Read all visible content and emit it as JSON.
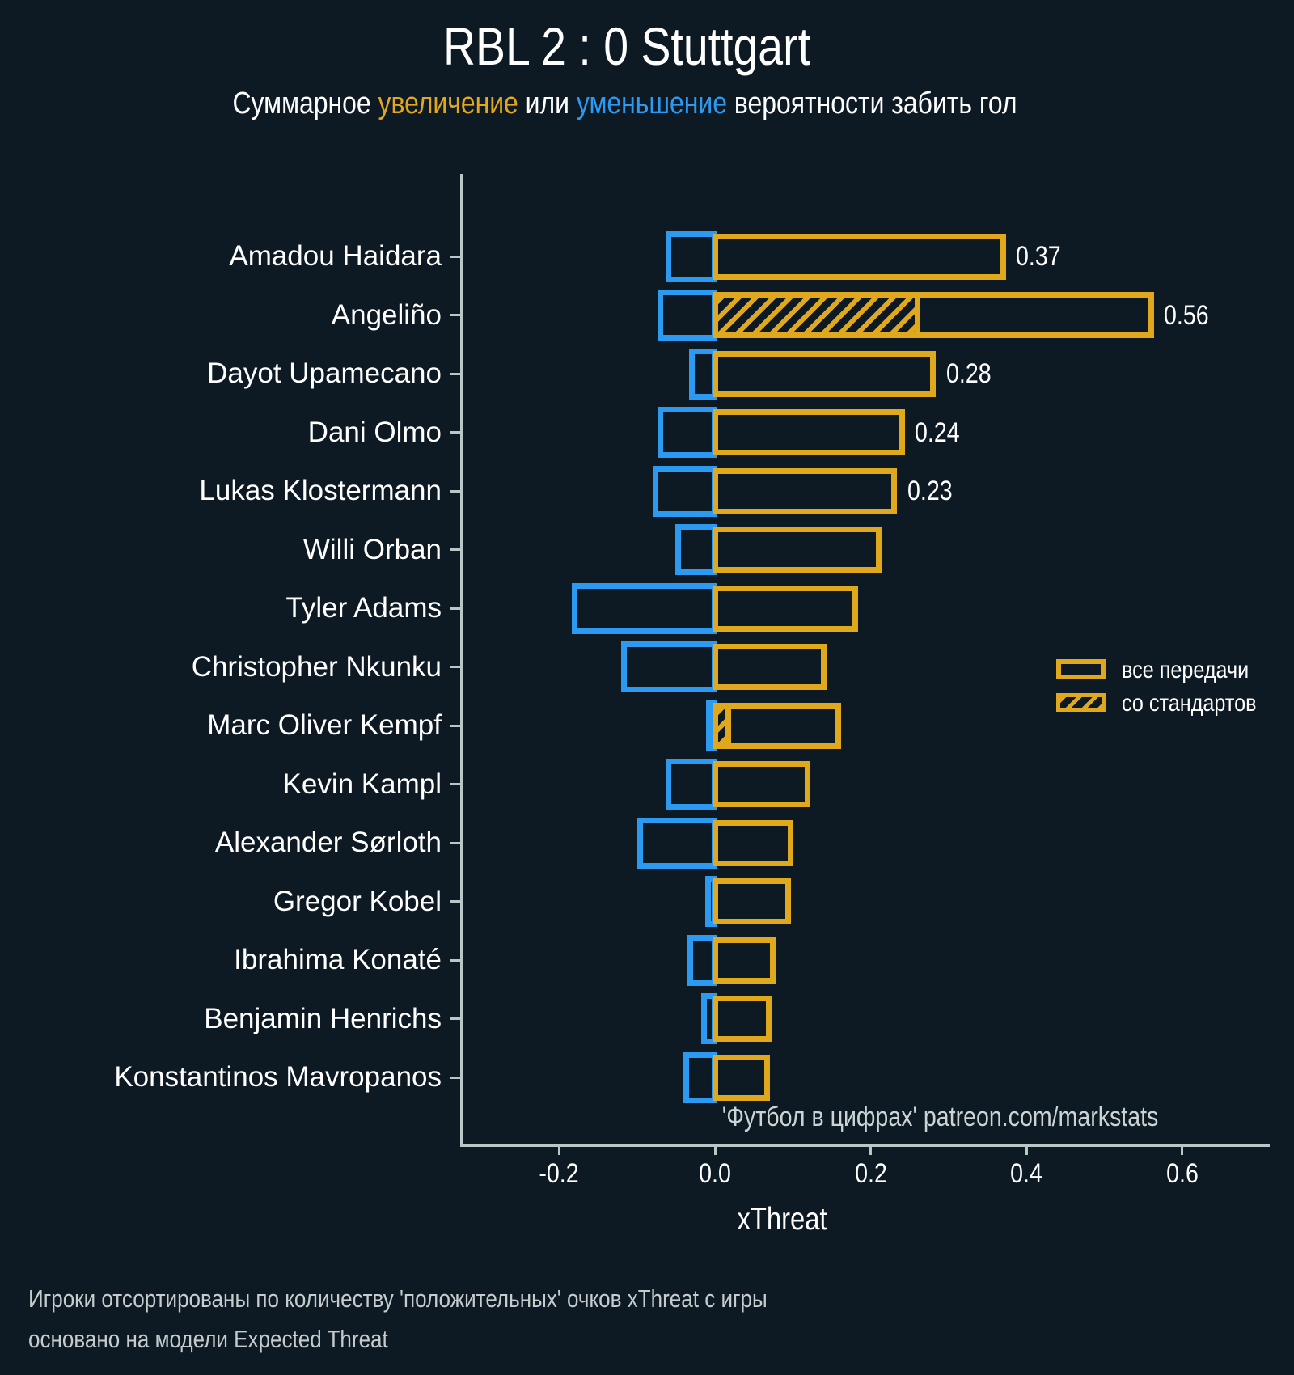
{
  "title": "RBL 2 : 0 Stuttgart",
  "subtitle": {
    "parts": [
      {
        "text": "Суммарное ",
        "color": "white"
      },
      {
        "text": "увеличение",
        "color": "positive"
      },
      {
        "text": " или ",
        "color": "white"
      },
      {
        "text": "уменьшение",
        "color": "negative"
      },
      {
        "text": " вероятности забить гол",
        "color": "white"
      }
    ]
  },
  "colors": {
    "background": "#0d1923",
    "positive": "#e0a81d",
    "negative": "#2b9af0",
    "axis": "#b9c7c6",
    "text": "#ffffff",
    "footer_text": "#c6ccce",
    "watermark_text": "#ccd3d4"
  },
  "legend": {
    "items": [
      {
        "label": "все передачи",
        "style": "outline"
      },
      {
        "label": "со стандартов",
        "style": "hatched"
      }
    ]
  },
  "watermark": "'Футбол в цифрах' patreon.com/markstats",
  "footer": [
    "Игроки отсортированы по количеству 'положительных' очков xThreat с игры",
    "основано на модели Expected Threat"
  ],
  "chart_data": {
    "type": "bar",
    "orientation": "horizontal",
    "title": "RBL 2 : 0 Stuttgart",
    "xlabel": "xThreat",
    "ylabel": "",
    "x_ticks": [
      "-0.2",
      "0.0",
      "0.2",
      "0.4",
      "0.6"
    ],
    "x_tick_values": [
      -0.2,
      0.0,
      0.2,
      0.4,
      0.6
    ],
    "xlim": [
      -0.327,
      0.712
    ],
    "grid": false,
    "legend_position": "center-right",
    "series_note": "positive = increase in goal probability (all passes), standards = portion from set pieces, negative = decrease",
    "players": [
      {
        "name": "Amadou Haidara",
        "positive": 0.37,
        "standards": 0,
        "negative": -0.06,
        "label": "0.37"
      },
      {
        "name": "Angeliño",
        "positive": 0.56,
        "standards": 0.26,
        "negative": -0.07,
        "label": "0.56"
      },
      {
        "name": "Dayot Upamecano",
        "positive": 0.28,
        "standards": 0,
        "negative": -0.03,
        "label": "0.28"
      },
      {
        "name": "Dani Olmo",
        "positive": 0.24,
        "standards": 0,
        "negative": -0.07,
        "label": "0.24"
      },
      {
        "name": "Lukas Klostermann",
        "positive": 0.23,
        "standards": 0,
        "negative": -0.076,
        "label": "0.23"
      },
      {
        "name": "Willi Orban",
        "positive": 0.21,
        "standards": 0,
        "negative": -0.047,
        "label": null
      },
      {
        "name": "Tyler Adams",
        "positive": 0.18,
        "standards": 0,
        "negative": -0.18,
        "label": null
      },
      {
        "name": "Christopher Nkunku",
        "positive": 0.14,
        "standards": 0,
        "negative": -0.117,
        "label": null
      },
      {
        "name": "Marc Oliver Kempf",
        "positive": 0.158,
        "standards": 0.017,
        "negative": -0.008,
        "label": null
      },
      {
        "name": "Kevin Kampl",
        "positive": 0.119,
        "standards": 0,
        "negative": -0.06,
        "label": null
      },
      {
        "name": "Alexander Sørloth",
        "positive": 0.097,
        "standards": 0,
        "negative": -0.096,
        "label": null
      },
      {
        "name": "Gregor Kobel",
        "positive": 0.094,
        "standards": 0,
        "negative": -0.009,
        "label": null
      },
      {
        "name": "Ibrahima Konaté",
        "positive": 0.074,
        "standards": 0,
        "negative": -0.032,
        "label": null
      },
      {
        "name": "Benjamin Henrichs",
        "positive": 0.069,
        "standards": 0,
        "negative": -0.014,
        "label": null
      },
      {
        "name": "Konstantinos Mavropanos",
        "positive": 0.067,
        "standards": 0,
        "negative": -0.037,
        "label": null
      }
    ]
  }
}
